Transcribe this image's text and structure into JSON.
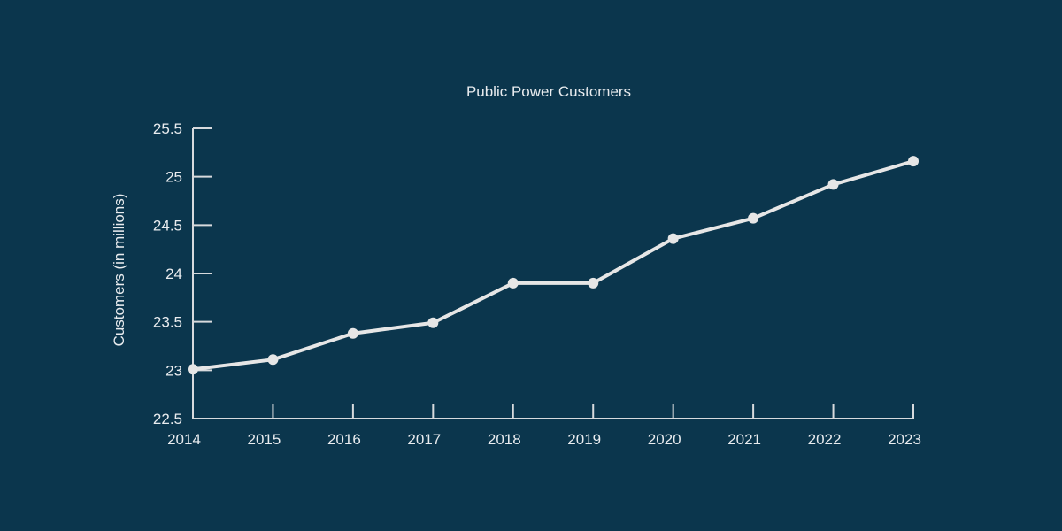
{
  "chart_data": {
    "type": "line",
    "title": "Public Power Customers",
    "xlabel": "",
    "ylabel": "Customers (in millions)",
    "categories": [
      "2014",
      "2015",
      "2016",
      "2017",
      "2018",
      "2019",
      "2020",
      "2021",
      "2022",
      "2023"
    ],
    "series": [
      {
        "values": [
          23.01,
          23.11,
          23.38,
          23.49,
          23.9,
          23.9,
          24.36,
          24.57,
          24.92,
          25.16
        ]
      }
    ],
    "ylim": [
      22.5,
      25.5
    ],
    "yticks": [
      "22.5",
      "23",
      "23.5",
      "24",
      "24.5",
      "25",
      "25.5"
    ],
    "grid": false,
    "legend": "none",
    "colors": {
      "background": "#0b364d",
      "line": "#e6e6e6",
      "marker": "#e6e6e6",
      "axis": "#d7dadd",
      "text": "#e9ecef"
    }
  }
}
